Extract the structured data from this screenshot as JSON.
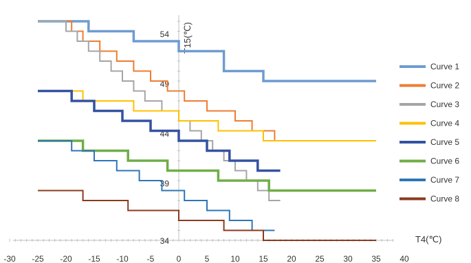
{
  "chart_data": {
    "type": "line",
    "title": "",
    "xlabel": "T4(℃)",
    "ylabel": "T15(℃)",
    "xlim": [
      -30,
      40
    ],
    "ylim": [
      34,
      54
    ],
    "x_ticks": [
      "-30",
      "-25",
      "-20",
      "-15",
      "-10",
      "-5",
      "0",
      "5",
      "10",
      "15",
      "20",
      "25",
      "30",
      "35",
      "40"
    ],
    "y_ticks": [
      "34",
      "39",
      "44",
      "49",
      "54"
    ],
    "grid": false,
    "legend_position": "right",
    "series": [
      {
        "name": "Curve 1",
        "color": "#6F9BD1",
        "width": 3.5,
        "x": [
          -25,
          -16,
          -16,
          -8,
          -8,
          0,
          0,
          8,
          8,
          15,
          15,
          35
        ],
        "y": [
          56,
          56,
          55,
          55,
          54,
          54,
          53,
          53,
          51,
          51,
          50,
          50
        ]
      },
      {
        "name": "Curve 2",
        "color": "#ED7D31",
        "width": 2,
        "x": [
          -25,
          -19,
          -19,
          -17,
          -17,
          -14,
          -14,
          -11,
          -11,
          -8,
          -8,
          -5,
          -5,
          -2,
          -2,
          1,
          1,
          5,
          5,
          10,
          10,
          13,
          13,
          17,
          17,
          35
        ],
        "y": [
          56,
          56,
          55,
          55,
          54,
          54,
          53,
          53,
          52,
          52,
          51,
          51,
          50,
          50,
          49,
          49,
          48,
          48,
          47,
          47,
          46,
          46,
          45,
          45,
          44,
          44
        ]
      },
      {
        "name": "Curve 3",
        "color": "#A5A5A5",
        "width": 2,
        "x": [
          -25,
          -20,
          -20,
          -18,
          -18,
          -16,
          -16,
          -14,
          -14,
          -12,
          -12,
          -10,
          -10,
          -8,
          -8,
          -6,
          -6,
          -3,
          -3,
          0,
          0,
          2,
          2,
          4,
          4,
          6,
          6,
          8,
          8,
          10,
          10,
          12,
          12,
          14,
          14,
          16,
          16,
          18
        ],
        "y": [
          56,
          56,
          55,
          55,
          54,
          54,
          53,
          53,
          52,
          52,
          51,
          51,
          50,
          50,
          49,
          49,
          48,
          48,
          47,
          47,
          46,
          46,
          45,
          45,
          44,
          44,
          43,
          43,
          42,
          42,
          41,
          41,
          40,
          40,
          39,
          39,
          38,
          38
        ]
      },
      {
        "name": "Curve 4",
        "color": "#FFC000",
        "width": 2,
        "x": [
          -25,
          -17,
          -17,
          -8,
          -8,
          0,
          0,
          7,
          7,
          15,
          15,
          35
        ],
        "y": [
          49,
          49,
          48,
          48,
          47,
          47,
          46,
          46,
          45,
          45,
          44,
          44
        ]
      },
      {
        "name": "Curve 5",
        "color": "#3552A0",
        "width": 3.5,
        "x": [
          -25,
          -19,
          -19,
          -15,
          -15,
          -10,
          -10,
          -5,
          -5,
          0,
          0,
          5,
          5,
          9,
          9,
          14,
          14,
          18
        ],
        "y": [
          49,
          49,
          48,
          48,
          47,
          47,
          46,
          46,
          45,
          45,
          44,
          44,
          43,
          43,
          42,
          42,
          41,
          41
        ]
      },
      {
        "name": "Curve 6",
        "color": "#70AD47",
        "width": 3.5,
        "x": [
          -25,
          -17,
          -17,
          -9,
          -9,
          -2,
          -2,
          7,
          7,
          16,
          16,
          35
        ],
        "y": [
          44,
          44,
          43,
          43,
          42,
          42,
          41,
          41,
          40,
          40,
          39,
          39
        ]
      },
      {
        "name": "Curve 7",
        "color": "#2E75B6",
        "width": 2,
        "x": [
          -25,
          -19,
          -19,
          -15,
          -15,
          -11,
          -11,
          -7,
          -7,
          -3,
          -3,
          1,
          1,
          5,
          5,
          9,
          9,
          13,
          13,
          17
        ],
        "y": [
          44,
          44,
          43,
          43,
          42,
          42,
          41,
          41,
          40,
          40,
          39,
          39,
          38,
          38,
          37,
          37,
          36,
          36,
          35,
          35
        ]
      },
      {
        "name": "Curve 8",
        "color": "#8B3A1E",
        "width": 2,
        "x": [
          -25,
          -17,
          -17,
          -9,
          -9,
          0,
          0,
          8,
          8,
          15,
          15,
          35
        ],
        "y": [
          39,
          39,
          38,
          38,
          37,
          37,
          36,
          36,
          35,
          35,
          34,
          34
        ]
      }
    ]
  }
}
